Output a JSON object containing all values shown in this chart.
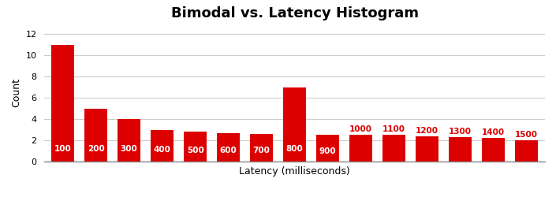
{
  "title": "Bimodal vs. Latency Histogram",
  "xlabel": "Latency (milliseconds)",
  "ylabel": "Count",
  "bar_labels": [
    "100",
    "200",
    "300",
    "400",
    "500",
    "600",
    "700",
    "800",
    "900",
    "1000",
    "1100",
    "1200",
    "1300",
    "1400",
    "1500"
  ],
  "bar_values": [
    11,
    5,
    4,
    3,
    2.8,
    2.7,
    2.6,
    7,
    2.5,
    2.5,
    2.5,
    2.4,
    2.3,
    2.2,
    2.0
  ],
  "bar_color": "#dd0000",
  "label_color_inside": "#ffffff",
  "label_color_outside": "#dd0000",
  "label_inside_indices": [
    0,
    1,
    2,
    3,
    4,
    5,
    6,
    7,
    8
  ],
  "label_outside_indices": [
    9,
    10,
    11,
    12,
    13,
    14
  ],
  "ylim": [
    0,
    13
  ],
  "yticks": [
    0,
    2,
    4,
    6,
    8,
    10,
    12
  ],
  "background_color": "#ffffff",
  "grid_color": "#cccccc",
  "title_fontsize": 13,
  "axis_label_fontsize": 9,
  "bar_label_fontsize": 7.5
}
